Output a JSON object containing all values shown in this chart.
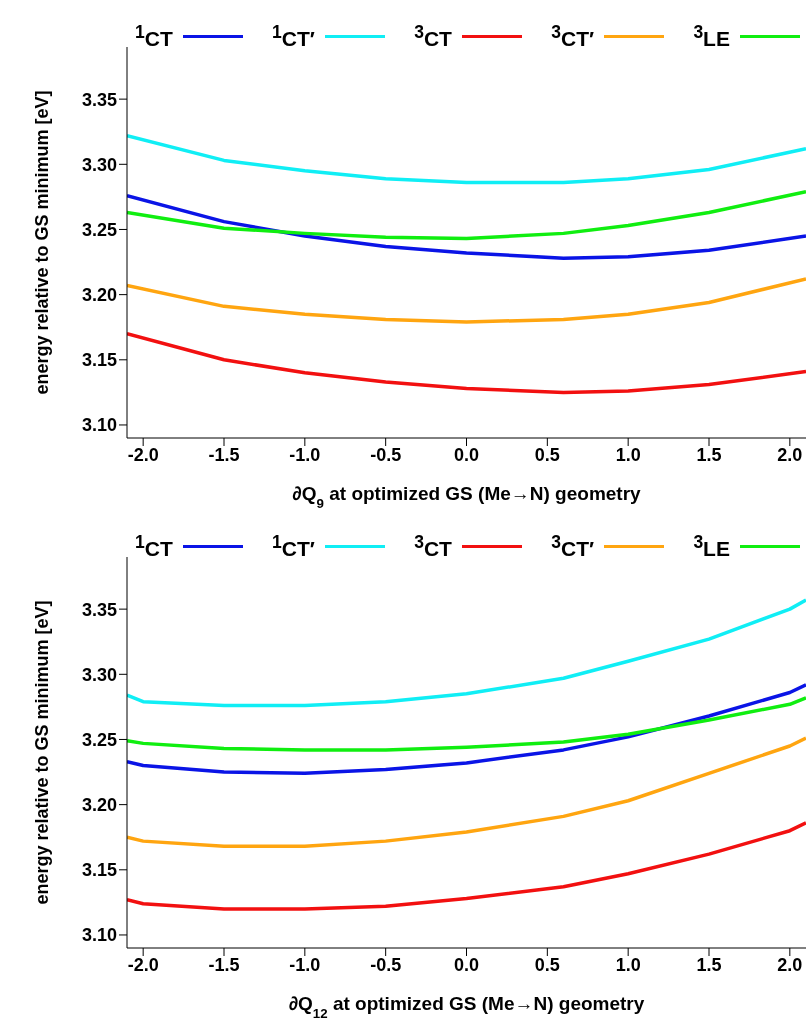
{
  "chart_data": [
    {
      "type": "line",
      "xlabel": "∂Q$_{9}$ at optimized GS (Me→N) geometry",
      "ylabel": "energy relative to GS minimum [eV]",
      "legend": "top",
      "x": [
        -2.1,
        -1.5,
        -1.0,
        -0.5,
        0,
        0.6,
        1.0,
        1.5,
        2.1
      ],
      "xlim": [
        -2.1,
        2.1
      ],
      "xticks": [
        {
          "value": -2,
          "label": "-2.0"
        },
        {
          "value": -1.5,
          "label": "-1.5"
        },
        {
          "value": -1,
          "label": "-1.0"
        },
        {
          "value": -0.5,
          "label": "-0.5"
        },
        {
          "value": 0,
          "label": "0.0"
        },
        {
          "value": 0.5,
          "label": "0.5"
        },
        {
          "value": 1,
          "label": "1.0"
        },
        {
          "value": 1.5,
          "label": "1.5"
        },
        {
          "value": 2,
          "label": "2.0"
        }
      ],
      "ylim": [
        3.09,
        3.39
      ],
      "yticks": [
        {
          "value": 3.1,
          "label": "3.10"
        },
        {
          "value": 3.15,
          "label": "3.15"
        },
        {
          "value": 3.2,
          "label": "3.20"
        },
        {
          "value": 3.25,
          "label": "3.25"
        },
        {
          "value": 3.3,
          "label": "3.30"
        },
        {
          "value": 3.35,
          "label": "3.35"
        }
      ],
      "series": [
        {
          "name": "$^{1}$CT",
          "color": "#0a14e6",
          "values": [
            3.276,
            3.256,
            3.245,
            3.237,
            3.232,
            3.228,
            3.229,
            3.234,
            3.245
          ]
        },
        {
          "name": "$^{1}$CT′",
          "color": "#10eef5",
          "values": [
            3.322,
            3.303,
            3.295,
            3.289,
            3.286,
            3.286,
            3.289,
            3.296,
            3.312
          ]
        },
        {
          "name": "$^{3}$CT",
          "color": "#f21010",
          "values": [
            3.17,
            3.15,
            3.14,
            3.133,
            3.128,
            3.125,
            3.126,
            3.131,
            3.141
          ]
        },
        {
          "name": "$^{3}$CT′",
          "color": "#ffa510",
          "values": [
            3.207,
            3.191,
            3.185,
            3.181,
            3.179,
            3.181,
            3.185,
            3.194,
            3.212
          ]
        },
        {
          "name": "$^{3}$LE",
          "color": "#10ee10",
          "values": [
            3.263,
            3.251,
            3.247,
            3.244,
            3.243,
            3.247,
            3.253,
            3.263,
            3.279
          ]
        }
      ]
    },
    {
      "type": "line",
      "xlabel": "∂Q$_{12}$ at optimized GS (Me→N) geometry",
      "ylabel": "energy relative to GS minimum [eV]",
      "legend": "top",
      "x": [
        -2.1,
        -2.0,
        -1.5,
        -1.0,
        -0.5,
        0,
        0.6,
        1.0,
        1.5,
        2.0,
        2.1
      ],
      "xlim": [
        -2.1,
        2.1
      ],
      "xticks": [
        {
          "value": -2,
          "label": "-2.0"
        },
        {
          "value": -1.5,
          "label": "-1.5"
        },
        {
          "value": -1,
          "label": "-1.0"
        },
        {
          "value": -0.5,
          "label": "-0.5"
        },
        {
          "value": 0,
          "label": "0.0"
        },
        {
          "value": 0.5,
          "label": "0.5"
        },
        {
          "value": 1,
          "label": "1.0"
        },
        {
          "value": 1.5,
          "label": "1.5"
        },
        {
          "value": 2,
          "label": "2.0"
        }
      ],
      "ylim": [
        3.09,
        3.39
      ],
      "yticks": [
        {
          "value": 3.1,
          "label": "3.10"
        },
        {
          "value": 3.15,
          "label": "3.15"
        },
        {
          "value": 3.2,
          "label": "3.20"
        },
        {
          "value": 3.25,
          "label": "3.25"
        },
        {
          "value": 3.3,
          "label": "3.30"
        },
        {
          "value": 3.35,
          "label": "3.35"
        }
      ],
      "series": [
        {
          "name": "$^{1}$CT",
          "color": "#0a14e6",
          "values": [
            3.233,
            3.23,
            3.225,
            3.224,
            3.227,
            3.232,
            3.242,
            3.252,
            3.268,
            3.286,
            3.292
          ]
        },
        {
          "name": "$^{1}$CT′",
          "color": "#10eef5",
          "values": [
            3.284,
            3.279,
            3.276,
            3.276,
            3.279,
            3.285,
            3.297,
            3.31,
            3.327,
            3.35,
            3.357
          ]
        },
        {
          "name": "$^{3}$CT",
          "color": "#f21010",
          "values": [
            3.127,
            3.124,
            3.12,
            3.12,
            3.122,
            3.128,
            3.137,
            3.147,
            3.162,
            3.18,
            3.186
          ]
        },
        {
          "name": "$^{3}$CT′",
          "color": "#ffa510",
          "values": [
            3.175,
            3.172,
            3.168,
            3.168,
            3.172,
            3.179,
            3.191,
            3.203,
            3.224,
            3.245,
            3.251
          ]
        },
        {
          "name": "$^{3}$LE",
          "color": "#10ee10",
          "values": [
            3.249,
            3.247,
            3.243,
            3.242,
            3.242,
            3.244,
            3.248,
            3.254,
            3.265,
            3.277,
            3.282
          ]
        }
      ]
    }
  ]
}
